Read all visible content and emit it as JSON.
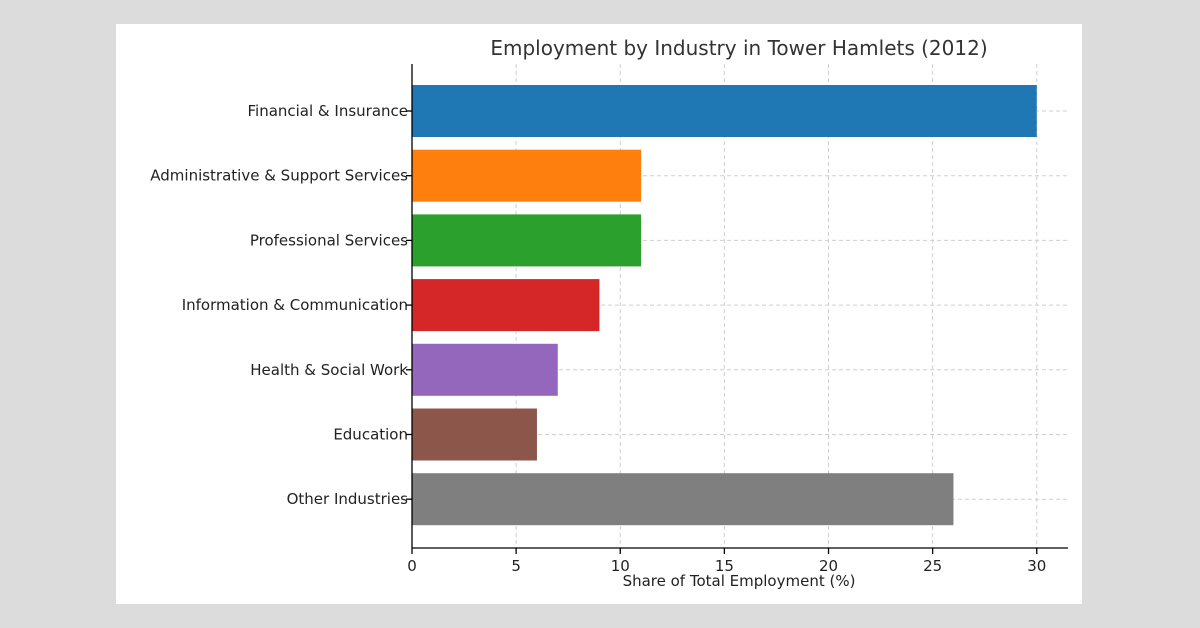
{
  "chart_data": {
    "type": "bar",
    "orientation": "horizontal",
    "title": "Employment by Industry in Tower Hamlets (2012)",
    "xlabel": "Share of Total Employment (%)",
    "ylabel": "",
    "xlim": [
      0,
      31.5
    ],
    "xticks": [
      0,
      5,
      10,
      15,
      20,
      25,
      30
    ],
    "grid": true,
    "categories": [
      "Financial & Insurance",
      "Administrative & Support Services",
      "Professional Services",
      "Information & Communication",
      "Health & Social Work",
      "Education",
      "Other Industries"
    ],
    "values": [
      30,
      11,
      11,
      9,
      7,
      6,
      26
    ],
    "colors": [
      "#1f77b4",
      "#ff7f0e",
      "#2ca02c",
      "#d62728",
      "#9467bd",
      "#8c564b",
      "#7f7f7f"
    ]
  }
}
